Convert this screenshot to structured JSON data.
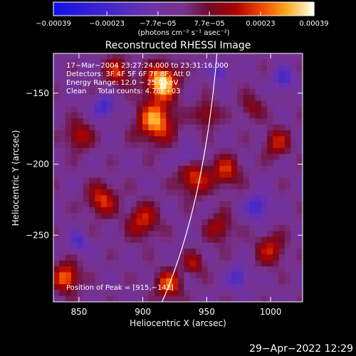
{
  "chart_data": {
    "type": "heatmap",
    "title": "Reconstructed RHESSI Image",
    "xlabel": "Heliocentric X (arcsec)",
    "ylabel": "Heliocentric Y (arcsec)",
    "xlim": [
      830,
      1025
    ],
    "ylim": [
      -297,
      -122
    ],
    "x_ticks": [
      850,
      900,
      950,
      1000
    ],
    "x_tick_labels": [
      "850",
      "900",
      "950",
      "1000"
    ],
    "y_ticks": [
      -150,
      -200,
      -250
    ],
    "y_tick_labels": [
      "−150",
      "−200",
      "−250"
    ],
    "colorbar": {
      "range": [
        -0.00039,
        0.00039
      ],
      "tick_values": [
        -0.00039,
        -0.00023,
        -7.7e-05,
        7.7e-05,
        0.00023,
        0.00039
      ],
      "tick_labels": [
        "−0.00039",
        "−0.00023",
        "−7.7e−05",
        "7.7e−05",
        "0.00023",
        "0.00039"
      ],
      "units_label": "(photons cm⁻² s⁻¹ asec⁻²)"
    },
    "info_lines": [
      "17−Mar−2004 23:27:24.000 to 23:31:16.000",
      "Detectors: 3F 4F 5F 6F 7F 8F, Att 0",
      "Energy Range: 12.0 − 25.0 keV",
      "Clean     Total counts: 4.78E+03"
    ],
    "peak_label": "Position of Peak = [915,−142]",
    "hotspots": [
      {
        "x": 915,
        "y": -142,
        "strength": 1.0,
        "spread": 12
      },
      {
        "x": 910,
        "y": -170,
        "strength": 0.85,
        "spread": 14
      },
      {
        "x": 880,
        "y": -135,
        "strength": 0.55,
        "spread": 10
      },
      {
        "x": 868,
        "y": -225,
        "strength": 0.6,
        "spread": 11
      },
      {
        "x": 900,
        "y": -240,
        "strength": 0.55,
        "spread": 12
      },
      {
        "x": 940,
        "y": -210,
        "strength": 0.6,
        "spread": 12
      },
      {
        "x": 965,
        "y": -205,
        "strength": 0.55,
        "spread": 11
      },
      {
        "x": 950,
        "y": -165,
        "strength": 0.45,
        "spread": 9
      },
      {
        "x": 1005,
        "y": -185,
        "strength": 0.5,
        "spread": 10
      },
      {
        "x": 1000,
        "y": -260,
        "strength": 0.5,
        "spread": 11
      },
      {
        "x": 960,
        "y": -245,
        "strength": 0.45,
        "spread": 10
      },
      {
        "x": 840,
        "y": -280,
        "strength": 0.75,
        "spread": 10
      },
      {
        "x": 920,
        "y": -285,
        "strength": 0.65,
        "spread": 10
      },
      {
        "x": 850,
        "y": -180,
        "strength": 0.5,
        "spread": 10
      },
      {
        "x": 985,
        "y": -160,
        "strength": 0.35,
        "spread": 9
      },
      {
        "x": 940,
        "y": -270,
        "strength": 0.45,
        "spread": 8
      }
    ],
    "coldspots": [
      {
        "x": 870,
        "y": -160,
        "strength": 0.55,
        "spread": 8
      },
      {
        "x": 990,
        "y": -230,
        "strength": 0.55,
        "spread": 9
      },
      {
        "x": 975,
        "y": -280,
        "strength": 0.5,
        "spread": 8
      },
      {
        "x": 1010,
        "y": -140,
        "strength": 0.5,
        "spread": 8
      },
      {
        "x": 935,
        "y": -195,
        "strength": 0.4,
        "spread": 7
      },
      {
        "x": 850,
        "y": -255,
        "strength": 0.45,
        "spread": 7
      },
      {
        "x": 960,
        "y": -135,
        "strength": 0.45,
        "spread": 7
      }
    ],
    "limb": {
      "x_at_top": 958,
      "x_at_bottom": 915
    },
    "colors": {
      "background": "#000000",
      "axis": "#ffffff",
      "limb": "#ffffff"
    }
  },
  "footer": {
    "timestamp": "29−Apr−2022 12:29"
  }
}
